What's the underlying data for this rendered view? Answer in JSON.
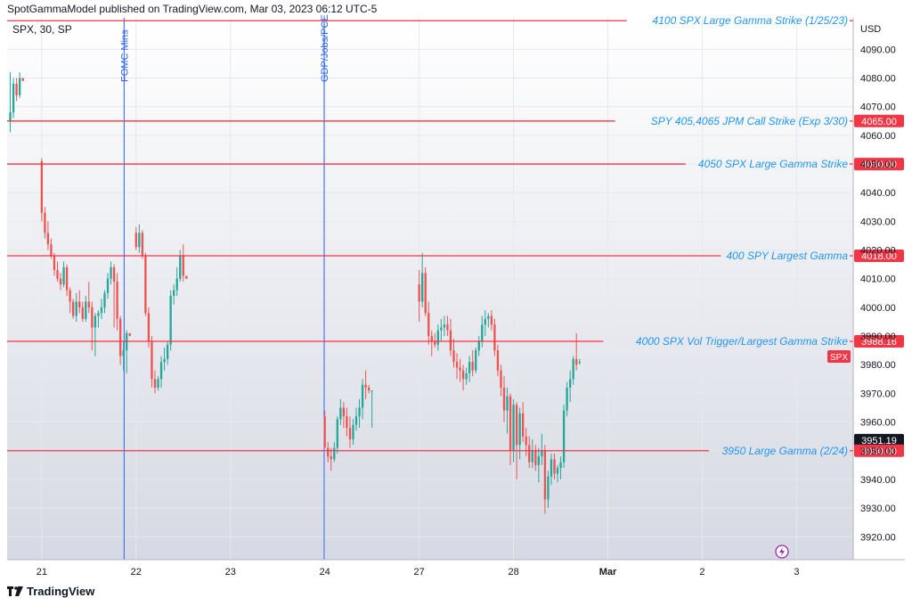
{
  "header": {
    "publisher": "SpotGammaModel published on TradingView.com, Mar 03, 2023 06:12 UTC-5",
    "symbol": "SPX, 30, SP"
  },
  "footer": {
    "brand": "TradingView",
    "logo_icon": "tradingview-logo-icon"
  },
  "colors": {
    "up": "#26a69a",
    "down": "#ef5350",
    "level": "#f23645",
    "event": "#2962ff",
    "label": "#2196f3",
    "axis_text": "#131722"
  },
  "chart_data": {
    "type": "candlestick",
    "ylabel": "USD",
    "ylim": [
      3912,
      4101
    ],
    "yticks": [
      3920,
      3930,
      3940,
      3950,
      3960,
      3970,
      3980,
      3990,
      4000,
      4010,
      4020,
      4030,
      4040,
      4050,
      4060,
      4070,
      4080,
      4090
    ],
    "x_range": [
      -1,
      268
    ],
    "x_ticks": [
      {
        "label": "21",
        "x": 10
      },
      {
        "label": "22",
        "x": 40
      },
      {
        "label": "23",
        "x": 70
      },
      {
        "label": "24",
        "x": 100
      },
      {
        "label": "27",
        "x": 130
      },
      {
        "label": "28",
        "x": 160
      },
      {
        "label": "Mar",
        "x": 190
      },
      {
        "label": "2",
        "x": 220
      },
      {
        "label": "3",
        "x": 250
      }
    ],
    "candles": [
      [
        0,
        4065,
        4082,
        4061,
        4068
      ],
      [
        1,
        4068,
        4080,
        4066,
        4078
      ],
      [
        2,
        4078,
        4080,
        4072,
        4074
      ],
      [
        3,
        4074,
        4082,
        4073,
        4080
      ],
      [
        4,
        4080,
        4080,
        4079,
        4079
      ],
      [
        10,
        4051,
        4052,
        4030,
        4033
      ],
      [
        11,
        4033,
        4035,
        4024,
        4026
      ],
      [
        12,
        4026,
        4030,
        4020,
        4022
      ],
      [
        13,
        4022,
        4024,
        4017,
        4018
      ],
      [
        14,
        4018,
        4019,
        4011,
        4013
      ],
      [
        15,
        4013,
        4016,
        4009,
        4010
      ],
      [
        16,
        4010,
        4012,
        4006,
        4008
      ],
      [
        17,
        4008,
        4016,
        4007,
        4014
      ],
      [
        18,
        4014,
        4015,
        4004,
        4006
      ],
      [
        19,
        4006,
        4007,
        3998,
        4002
      ],
      [
        20,
        4002,
        4003,
        3996,
        3997
      ],
      [
        21,
        3997,
        4005,
        3995,
        4002
      ],
      [
        22,
        4002,
        4006,
        3998,
        4000
      ],
      [
        23,
        4000,
        4002,
        3995,
        3996
      ],
      [
        24,
        3996,
        4004,
        3995,
        4002
      ],
      [
        25,
        4002,
        4009,
        3998,
        4000
      ],
      [
        26,
        4000,
        4002,
        3985,
        3993
      ],
      [
        27,
        3993,
        3998,
        3983,
        3997
      ],
      [
        28,
        3997,
        3999,
        3993,
        3998
      ],
      [
        29,
        3998,
        4003,
        3996,
        4000
      ],
      [
        30,
        4000,
        4006,
        3998,
        4005
      ],
      [
        31,
        4005,
        4012,
        4003,
        4010
      ],
      [
        32,
        4010,
        4016,
        4008,
        4014
      ],
      [
        33,
        4014,
        4015,
        3993,
        4009
      ],
      [
        34,
        4009,
        4012,
        3992,
        3996
      ],
      [
        35,
        3996,
        3997,
        3980,
        3983
      ],
      [
        36,
        3983,
        3988,
        3978,
        3985
      ],
      [
        37,
        3985,
        3992,
        3977,
        3991
      ],
      [
        38,
        3991,
        3991,
        3990,
        3990
      ],
      [
        40,
        4026,
        4028,
        4020,
        4021
      ],
      [
        41,
        4021,
        4029,
        4019,
        4026
      ],
      [
        42,
        4026,
        4027,
        4017,
        4018
      ],
      [
        43,
        4018,
        4019,
        3997,
        3998
      ],
      [
        44,
        3998,
        4000,
        3986,
        3988
      ],
      [
        45,
        3988,
        3990,
        3972,
        3975
      ],
      [
        46,
        3975,
        3978,
        3970,
        3972
      ],
      [
        47,
        3972,
        3976,
        3971,
        3975
      ],
      [
        48,
        3975,
        3983,
        3972,
        3981
      ],
      [
        49,
        3981,
        3986,
        3978,
        3982
      ],
      [
        50,
        3982,
        3988,
        3980,
        3987
      ],
      [
        51,
        3987,
        4006,
        3985,
        4004
      ],
      [
        52,
        4004,
        4008,
        4001,
        4006
      ],
      [
        53,
        4006,
        4014,
        4004,
        4010
      ],
      [
        54,
        4010,
        4020,
        4009,
        4018
      ],
      [
        55,
        4018,
        4022,
        4009,
        4011
      ],
      [
        56,
        4011,
        4011,
        4010,
        4010
      ],
      [
        100,
        3962,
        3964,
        3951,
        3951
      ],
      [
        101,
        3951,
        3953,
        3946,
        3948
      ],
      [
        102,
        3948,
        3951,
        3943,
        3947
      ],
      [
        103,
        3947,
        3953,
        3946,
        3951
      ],
      [
        104,
        3951,
        3962,
        3949,
        3961
      ],
      [
        105,
        3961,
        3968,
        3959,
        3965
      ],
      [
        106,
        3965,
        3967,
        3958,
        3962
      ],
      [
        107,
        3962,
        3965,
        3955,
        3958
      ],
      [
        108,
        3958,
        3962,
        3951,
        3954
      ],
      [
        109,
        3954,
        3961,
        3952,
        3959
      ],
      [
        110,
        3959,
        3965,
        3957,
        3962
      ],
      [
        111,
        3962,
        3968,
        3958,
        3965
      ],
      [
        112,
        3965,
        3975,
        3961,
        3973
      ],
      [
        113,
        3973,
        3978,
        3968,
        3972
      ],
      [
        114,
        3972,
        3973,
        3970,
        3971
      ],
      [
        115,
        3971,
        3971,
        3958,
        3971
      ],
      [
        130,
        4008,
        4013,
        3995,
        4002
      ],
      [
        131,
        4002,
        4019,
        4000,
        4012
      ],
      [
        132,
        4012,
        4014,
        3997,
        3998
      ],
      [
        133,
        3998,
        4002,
        3987,
        3990
      ],
      [
        134,
        3990,
        3992,
        3983,
        3988
      ],
      [
        135,
        3988,
        3991,
        3986,
        3987
      ],
      [
        136,
        3987,
        3994,
        3985,
        3992
      ],
      [
        137,
        3992,
        3996,
        3988,
        3993
      ],
      [
        138,
        3993,
        3997,
        3990,
        3994
      ],
      [
        139,
        3994,
        3997,
        3990,
        3992
      ],
      [
        140,
        3992,
        3996,
        3983,
        3985
      ],
      [
        141,
        3985,
        3989,
        3979,
        3981
      ],
      [
        142,
        3981,
        3984,
        3975,
        3979
      ],
      [
        143,
        3979,
        3982,
        3974,
        3978
      ],
      [
        144,
        3978,
        3980,
        3971,
        3975
      ],
      [
        145,
        3975,
        3979,
        3973,
        3977
      ],
      [
        146,
        3977,
        3983,
        3974,
        3981
      ],
      [
        147,
        3981,
        3985,
        3976,
        3978
      ],
      [
        148,
        3978,
        3986,
        3977,
        3985
      ],
      [
        149,
        3985,
        3990,
        3983,
        3988
      ],
      [
        150,
        3988,
        3997,
        3986,
        3994
      ],
      [
        151,
        3994,
        3999,
        3990,
        3996
      ],
      [
        152,
        3996,
        3998,
        3993,
        3997
      ],
      [
        153,
        3997,
        3999,
        3992,
        3994
      ],
      [
        154,
        3994,
        3996,
        3983,
        3985
      ],
      [
        155,
        3985,
        3987,
        3976,
        3978
      ],
      [
        156,
        3978,
        3980,
        3969,
        3972
      ],
      [
        157,
        3972,
        3976,
        3960,
        3964
      ],
      [
        158,
        3964,
        3972,
        3956,
        3969
      ],
      [
        159,
        3969,
        3970,
        3945,
        3950
      ],
      [
        160,
        3950,
        3968,
        3946,
        3966
      ],
      [
        161,
        3966,
        3967,
        3940,
        3952
      ],
      [
        162,
        3952,
        3965,
        3947,
        3963
      ],
      [
        163,
        3963,
        3967,
        3953,
        3955
      ],
      [
        164,
        3955,
        3958,
        3948,
        3952
      ],
      [
        165,
        3952,
        3955,
        3944,
        3946
      ],
      [
        166,
        3946,
        3954,
        3944,
        3950
      ],
      [
        167,
        3950,
        3952,
        3943,
        3945
      ],
      [
        168,
        3945,
        3951,
        3939,
        3948
      ],
      [
        169,
        3948,
        3956,
        3945,
        3950
      ],
      [
        170,
        3950,
        3952,
        3928,
        3933
      ],
      [
        171,
        3933,
        3943,
        3930,
        3941
      ],
      [
        172,
        3941,
        3949,
        3938,
        3947
      ],
      [
        173,
        3947,
        3949,
        3940,
        3942
      ],
      [
        174,
        3942,
        3945,
        3939,
        3944
      ],
      [
        175,
        3944,
        3948,
        3940,
        3946
      ],
      [
        176,
        3946,
        3966,
        3944,
        3964
      ],
      [
        177,
        3964,
        3974,
        3962,
        3972
      ],
      [
        178,
        3972,
        3978,
        3967,
        3975
      ],
      [
        179,
        3975,
        3983,
        3973,
        3982
      ],
      [
        180,
        3982,
        3991,
        3978,
        3980
      ],
      [
        181,
        3981,
        3982,
        3980,
        3981
      ]
    ],
    "levels": [
      {
        "price": 4100,
        "label": "4100 SPX Large Gamma Strike (1/25/23)",
        "tag": ""
      },
      {
        "price": 4065,
        "label": "SPY 405,4065 JPM Call Strike (Exp 3/30)",
        "tag": "4065.00"
      },
      {
        "price": 4050,
        "label": "4050 SPX Large Gamma Strike",
        "tag": "4050.00"
      },
      {
        "price": 4018,
        "label": "400 SPY Largest Gamma",
        "tag": "4018.00"
      },
      {
        "price": 3988.16,
        "label": "4000 SPX Vol Trigger/Largest Gamma Strike",
        "tag": "3988.16"
      },
      {
        "price": 3950,
        "label": "3950 Large Gamma (2/24)",
        "tag": "3950.00"
      }
    ],
    "events": [
      {
        "x": 36.2,
        "label": "FOMC Mins"
      },
      {
        "x": 99.8,
        "label": "GDP/Jobs/PCE"
      }
    ],
    "last_price": {
      "price": 3981,
      "label": "SPX"
    },
    "hidden_tag": "3951.19",
    "flash_icon": "lightning-icon"
  }
}
